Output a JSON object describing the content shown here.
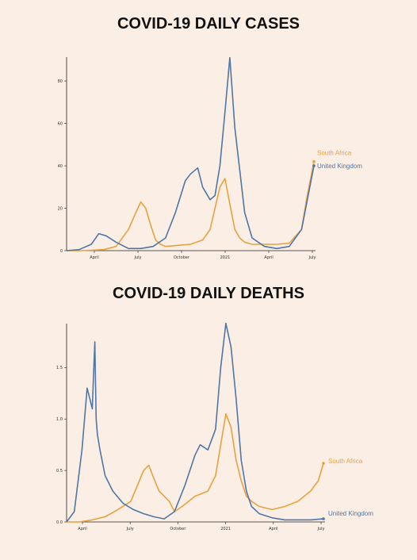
{
  "chart_data": [
    {
      "type": "line",
      "title": "COVID-19 DAILY CASES",
      "xlabel": "",
      "ylabel": "",
      "x_ticks": [
        "April",
        "July",
        "October",
        "2021",
        "April",
        "July"
      ],
      "y_ticks": [
        "0",
        "20",
        "40",
        "60",
        "80"
      ],
      "ylim": [
        0,
        92
      ],
      "grid": false,
      "series": [
        {
          "name": "South Africa",
          "color": "#e8a23d",
          "x": [
            0,
            0.05,
            0.1,
            0.15,
            0.2,
            0.25,
            0.28,
            0.3,
            0.32,
            0.34,
            0.36,
            0.38,
            0.4,
            0.45,
            0.5,
            0.55,
            0.58,
            0.6,
            0.62,
            0.64,
            0.66,
            0.68,
            0.7,
            0.72,
            0.75,
            0.8,
            0.85,
            0.9,
            0.95,
            0.97,
            1.0
          ],
          "values": [
            0,
            0,
            0.2,
            0.5,
            2,
            10,
            18,
            23,
            20,
            12,
            5,
            3,
            2,
            2.5,
            3,
            5,
            10,
            20,
            30,
            34,
            22,
            10,
            6,
            4,
            3,
            3,
            3,
            3.5,
            10,
            24,
            42
          ]
        },
        {
          "name": "United Kingdom",
          "color": "#4f76a6",
          "x": [
            0,
            0.05,
            0.1,
            0.13,
            0.16,
            0.2,
            0.25,
            0.3,
            0.35,
            0.4,
            0.44,
            0.48,
            0.5,
            0.53,
            0.55,
            0.58,
            0.6,
            0.62,
            0.64,
            0.66,
            0.68,
            0.7,
            0.72,
            0.75,
            0.8,
            0.85,
            0.9,
            0.95,
            1.0
          ],
          "values": [
            0,
            0.5,
            3,
            8,
            7,
            4,
            1,
            1,
            2,
            6,
            18,
            33,
            36,
            39,
            30,
            24,
            26,
            40,
            65,
            91,
            58,
            38,
            18,
            6,
            2,
            1,
            2,
            10,
            40
          ]
        }
      ]
    },
    {
      "type": "line",
      "title": "COVID-19 DAILY DEATHS",
      "xlabel": "",
      "ylabel": "",
      "x_ticks": [
        "April",
        "July",
        "October",
        "2021",
        "April",
        "July"
      ],
      "y_ticks": [
        "0.0",
        "0.5",
        "1.0",
        "1.5"
      ],
      "ylim": [
        0,
        1.95
      ],
      "grid": false,
      "series": [
        {
          "name": "South Africa",
          "color": "#e8a23d",
          "x": [
            0,
            0.05,
            0.1,
            0.15,
            0.2,
            0.25,
            0.28,
            0.3,
            0.32,
            0.34,
            0.36,
            0.38,
            0.4,
            0.42,
            0.45,
            0.5,
            0.55,
            0.58,
            0.6,
            0.62,
            0.64,
            0.66,
            0.68,
            0.7,
            0.72,
            0.75,
            0.8,
            0.85,
            0.9,
            0.95,
            0.98,
            1.0
          ],
          "values": [
            0,
            0,
            0.02,
            0.05,
            0.12,
            0.2,
            0.38,
            0.5,
            0.55,
            0.42,
            0.3,
            0.25,
            0.2,
            0.1,
            0.15,
            0.25,
            0.3,
            0.45,
            0.75,
            1.05,
            0.92,
            0.6,
            0.4,
            0.25,
            0.2,
            0.15,
            0.12,
            0.15,
            0.2,
            0.3,
            0.4,
            0.57
          ]
        },
        {
          "name": "United Kingdom",
          "color": "#4f76a6",
          "x": [
            0,
            0.03,
            0.06,
            0.08,
            0.09,
            0.1,
            0.11,
            0.115,
            0.12,
            0.13,
            0.15,
            0.18,
            0.22,
            0.26,
            0.3,
            0.34,
            0.38,
            0.42,
            0.46,
            0.5,
            0.52,
            0.55,
            0.58,
            0.6,
            0.62,
            0.64,
            0.66,
            0.68,
            0.7,
            0.72,
            0.75,
            0.8,
            0.85,
            0.9,
            0.95,
            1.0
          ],
          "values": [
            0,
            0.1,
            0.7,
            1.3,
            1.2,
            1.1,
            1.75,
            1.0,
            0.85,
            0.7,
            0.45,
            0.3,
            0.18,
            0.12,
            0.08,
            0.05,
            0.03,
            0.1,
            0.35,
            0.65,
            0.75,
            0.7,
            0.9,
            1.5,
            1.93,
            1.7,
            1.2,
            0.6,
            0.3,
            0.15,
            0.08,
            0.04,
            0.02,
            0.02,
            0.02,
            0.03
          ]
        }
      ]
    }
  ]
}
